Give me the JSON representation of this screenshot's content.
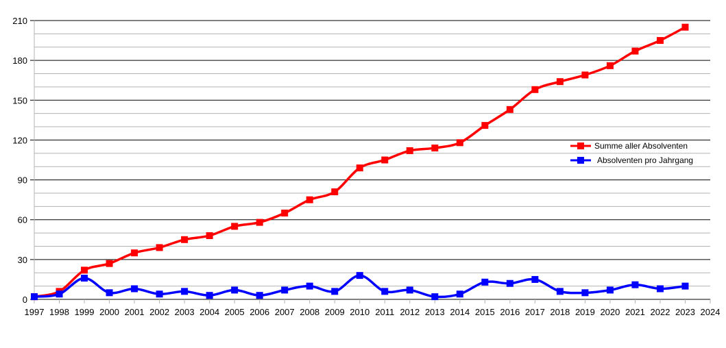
{
  "chart_data": {
    "type": "line",
    "x": [
      1997,
      1998,
      1999,
      2000,
      2001,
      2002,
      2003,
      2004,
      2005,
      2006,
      2007,
      2008,
      2009,
      2010,
      2011,
      2012,
      2013,
      2014,
      2015,
      2016,
      2017,
      2018,
      2019,
      2020,
      2021,
      2022,
      2023
    ],
    "x_ticks": [
      1997,
      1998,
      1999,
      2000,
      2001,
      2002,
      2003,
      2004,
      2005,
      2006,
      2007,
      2008,
      2009,
      2010,
      2011,
      2012,
      2013,
      2014,
      2015,
      2016,
      2017,
      2018,
      2019,
      2020,
      2021,
      2022,
      2023,
      2024
    ],
    "xlim": [
      1997,
      2024
    ],
    "ylim": [
      0,
      210
    ],
    "y_ticks": [
      0,
      30,
      60,
      90,
      120,
      150,
      180,
      210
    ],
    "grid": true,
    "legend_position": "right",
    "series": [
      {
        "name": "Summe aller Absolventen",
        "color": "#ff0000",
        "marker": "square",
        "values": [
          2,
          6,
          22,
          27,
          35,
          39,
          45,
          48,
          55,
          58,
          65,
          75,
          81,
          99,
          105,
          112,
          114,
          118,
          131,
          143,
          158,
          164,
          169,
          176,
          187,
          195,
          205
        ]
      },
      {
        "name": "Absolventen pro Jahrgang",
        "color": "#0000ff",
        "marker": "square",
        "values": [
          2,
          4,
          16,
          5,
          8,
          4,
          6,
          3,
          7,
          3,
          7,
          10,
          6,
          18,
          6,
          7,
          2,
          4,
          13,
          12,
          15,
          6,
          5,
          7,
          11,
          8,
          10
        ]
      }
    ]
  }
}
